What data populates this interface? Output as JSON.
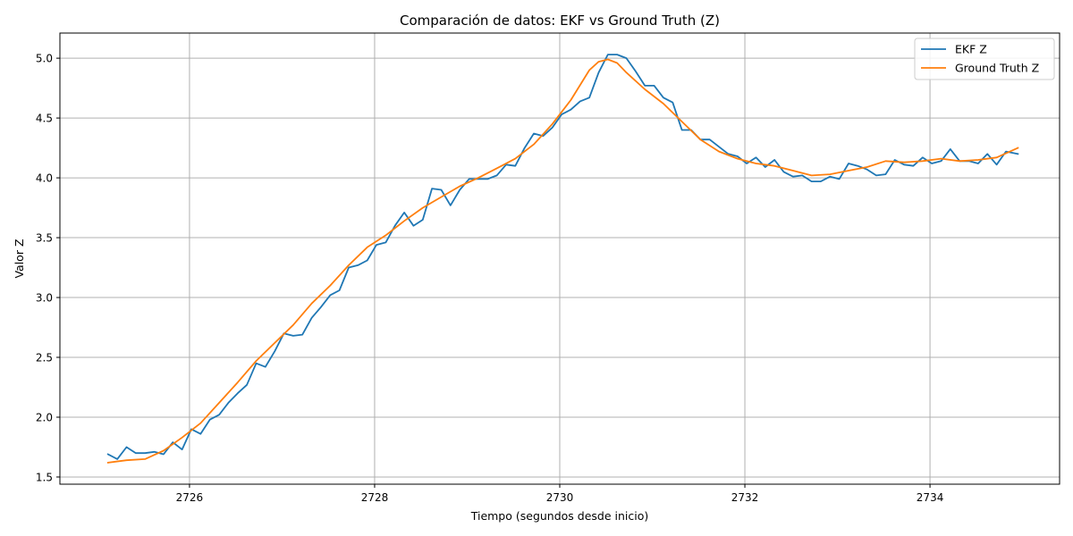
{
  "chart_data": {
    "type": "line",
    "title": "Comparación de datos: EKF vs Ground Truth (Z)",
    "xlabel": "Tiempo (segundos desde inicio)",
    "ylabel": "Valor Z",
    "xlim": [
      2724.6,
      2735.4
    ],
    "ylim": [
      1.44,
      5.21
    ],
    "xticks": [
      2726,
      2728,
      2730,
      2732,
      2734
    ],
    "yticks": [
      1.5,
      2.0,
      2.5,
      3.0,
      3.5,
      4.0,
      4.5,
      5.0
    ],
    "xtick_labels": [
      "2726",
      "2728",
      "2730",
      "2732",
      "2734"
    ],
    "ytick_labels": [
      "1.5",
      "2.0",
      "2.5",
      "3.0",
      "3.5",
      "4.0",
      "4.5",
      "5.0"
    ],
    "grid": true,
    "legend_position": "top-right",
    "series": [
      {
        "name": "EKF Z",
        "color": "#1f77b4",
        "points": [
          [
            2725.12,
            1.69
          ],
          [
            2725.22,
            1.65
          ],
          [
            2725.32,
            1.75
          ],
          [
            2725.42,
            1.7
          ],
          [
            2725.52,
            1.7
          ],
          [
            2725.62,
            1.71
          ],
          [
            2725.72,
            1.69
          ],
          [
            2725.82,
            1.79
          ],
          [
            2725.92,
            1.73
          ],
          [
            2726.02,
            1.9
          ],
          [
            2726.12,
            1.86
          ],
          [
            2726.22,
            1.98
          ],
          [
            2726.32,
            2.02
          ],
          [
            2726.42,
            2.12
          ],
          [
            2726.52,
            2.2
          ],
          [
            2726.62,
            2.27
          ],
          [
            2726.72,
            2.45
          ],
          [
            2726.82,
            2.42
          ],
          [
            2726.92,
            2.55
          ],
          [
            2727.02,
            2.7
          ],
          [
            2727.12,
            2.68
          ],
          [
            2727.22,
            2.69
          ],
          [
            2727.32,
            2.83
          ],
          [
            2727.42,
            2.92
          ],
          [
            2727.52,
            3.02
          ],
          [
            2727.62,
            3.06
          ],
          [
            2727.72,
            3.25
          ],
          [
            2727.82,
            3.27
          ],
          [
            2727.92,
            3.31
          ],
          [
            2728.02,
            3.44
          ],
          [
            2728.12,
            3.46
          ],
          [
            2728.22,
            3.6
          ],
          [
            2728.32,
            3.71
          ],
          [
            2728.42,
            3.6
          ],
          [
            2728.52,
            3.65
          ],
          [
            2728.62,
            3.91
          ],
          [
            2728.72,
            3.9
          ],
          [
            2728.82,
            3.77
          ],
          [
            2728.92,
            3.9
          ],
          [
            2729.02,
            3.99
          ],
          [
            2729.12,
            3.99
          ],
          [
            2729.22,
            3.99
          ],
          [
            2729.32,
            4.02
          ],
          [
            2729.42,
            4.11
          ],
          [
            2729.52,
            4.1
          ],
          [
            2729.62,
            4.25
          ],
          [
            2729.72,
            4.37
          ],
          [
            2729.82,
            4.35
          ],
          [
            2729.92,
            4.42
          ],
          [
            2730.02,
            4.53
          ],
          [
            2730.12,
            4.57
          ],
          [
            2730.22,
            4.64
          ],
          [
            2730.32,
            4.67
          ],
          [
            2730.42,
            4.88
          ],
          [
            2730.52,
            5.03
          ],
          [
            2730.62,
            5.03
          ],
          [
            2730.72,
            5.0
          ],
          [
            2730.82,
            4.89
          ],
          [
            2730.92,
            4.77
          ],
          [
            2731.02,
            4.77
          ],
          [
            2731.12,
            4.67
          ],
          [
            2731.22,
            4.63
          ],
          [
            2731.32,
            4.4
          ],
          [
            2731.42,
            4.4
          ],
          [
            2731.52,
            4.32
          ],
          [
            2731.62,
            4.32
          ],
          [
            2731.72,
            4.26
          ],
          [
            2731.82,
            4.2
          ],
          [
            2731.92,
            4.18
          ],
          [
            2732.02,
            4.12
          ],
          [
            2732.12,
            4.17
          ],
          [
            2732.22,
            4.09
          ],
          [
            2732.32,
            4.15
          ],
          [
            2732.42,
            4.05
          ],
          [
            2732.52,
            4.01
          ],
          [
            2732.62,
            4.02
          ],
          [
            2732.72,
            3.97
          ],
          [
            2732.82,
            3.97
          ],
          [
            2732.92,
            4.01
          ],
          [
            2733.02,
            3.99
          ],
          [
            2733.12,
            4.12
          ],
          [
            2733.22,
            4.1
          ],
          [
            2733.32,
            4.07
          ],
          [
            2733.42,
            4.02
          ],
          [
            2733.52,
            4.03
          ],
          [
            2733.62,
            4.15
          ],
          [
            2733.72,
            4.11
          ],
          [
            2733.82,
            4.1
          ],
          [
            2733.92,
            4.17
          ],
          [
            2734.02,
            4.12
          ],
          [
            2734.12,
            4.14
          ],
          [
            2734.22,
            4.24
          ],
          [
            2734.32,
            4.14
          ],
          [
            2734.42,
            4.14
          ],
          [
            2734.52,
            4.12
          ],
          [
            2734.62,
            4.2
          ],
          [
            2734.72,
            4.11
          ],
          [
            2734.82,
            4.22
          ],
          [
            2734.95,
            4.2
          ]
        ]
      },
      {
        "name": "Ground Truth Z",
        "color": "#ff7f0e",
        "points": [
          [
            2725.12,
            1.62
          ],
          [
            2725.32,
            1.64
          ],
          [
            2725.52,
            1.65
          ],
          [
            2725.72,
            1.72
          ],
          [
            2725.92,
            1.83
          ],
          [
            2726.12,
            1.95
          ],
          [
            2726.32,
            2.12
          ],
          [
            2726.52,
            2.29
          ],
          [
            2726.72,
            2.47
          ],
          [
            2726.92,
            2.62
          ],
          [
            2727.12,
            2.77
          ],
          [
            2727.32,
            2.95
          ],
          [
            2727.52,
            3.1
          ],
          [
            2727.72,
            3.27
          ],
          [
            2727.92,
            3.42
          ],
          [
            2728.12,
            3.52
          ],
          [
            2728.32,
            3.64
          ],
          [
            2728.52,
            3.75
          ],
          [
            2728.72,
            3.84
          ],
          [
            2728.92,
            3.93
          ],
          [
            2729.12,
            4.0
          ],
          [
            2729.32,
            4.08
          ],
          [
            2729.52,
            4.16
          ],
          [
            2729.72,
            4.28
          ],
          [
            2729.92,
            4.45
          ],
          [
            2730.12,
            4.65
          ],
          [
            2730.32,
            4.9
          ],
          [
            2730.42,
            4.97
          ],
          [
            2730.52,
            4.99
          ],
          [
            2730.62,
            4.96
          ],
          [
            2730.72,
            4.88
          ],
          [
            2730.92,
            4.74
          ],
          [
            2731.12,
            4.62
          ],
          [
            2731.32,
            4.47
          ],
          [
            2731.52,
            4.32
          ],
          [
            2731.72,
            4.22
          ],
          [
            2731.92,
            4.16
          ],
          [
            2732.12,
            4.12
          ],
          [
            2732.32,
            4.1
          ],
          [
            2732.52,
            4.06
          ],
          [
            2732.72,
            4.02
          ],
          [
            2732.92,
            4.03
          ],
          [
            2733.12,
            4.06
          ],
          [
            2733.32,
            4.09
          ],
          [
            2733.52,
            4.14
          ],
          [
            2733.72,
            4.13
          ],
          [
            2733.92,
            4.14
          ],
          [
            2734.12,
            4.16
          ],
          [
            2734.32,
            4.14
          ],
          [
            2734.52,
            4.15
          ],
          [
            2734.72,
            4.17
          ],
          [
            2734.95,
            4.25
          ]
        ]
      }
    ]
  }
}
